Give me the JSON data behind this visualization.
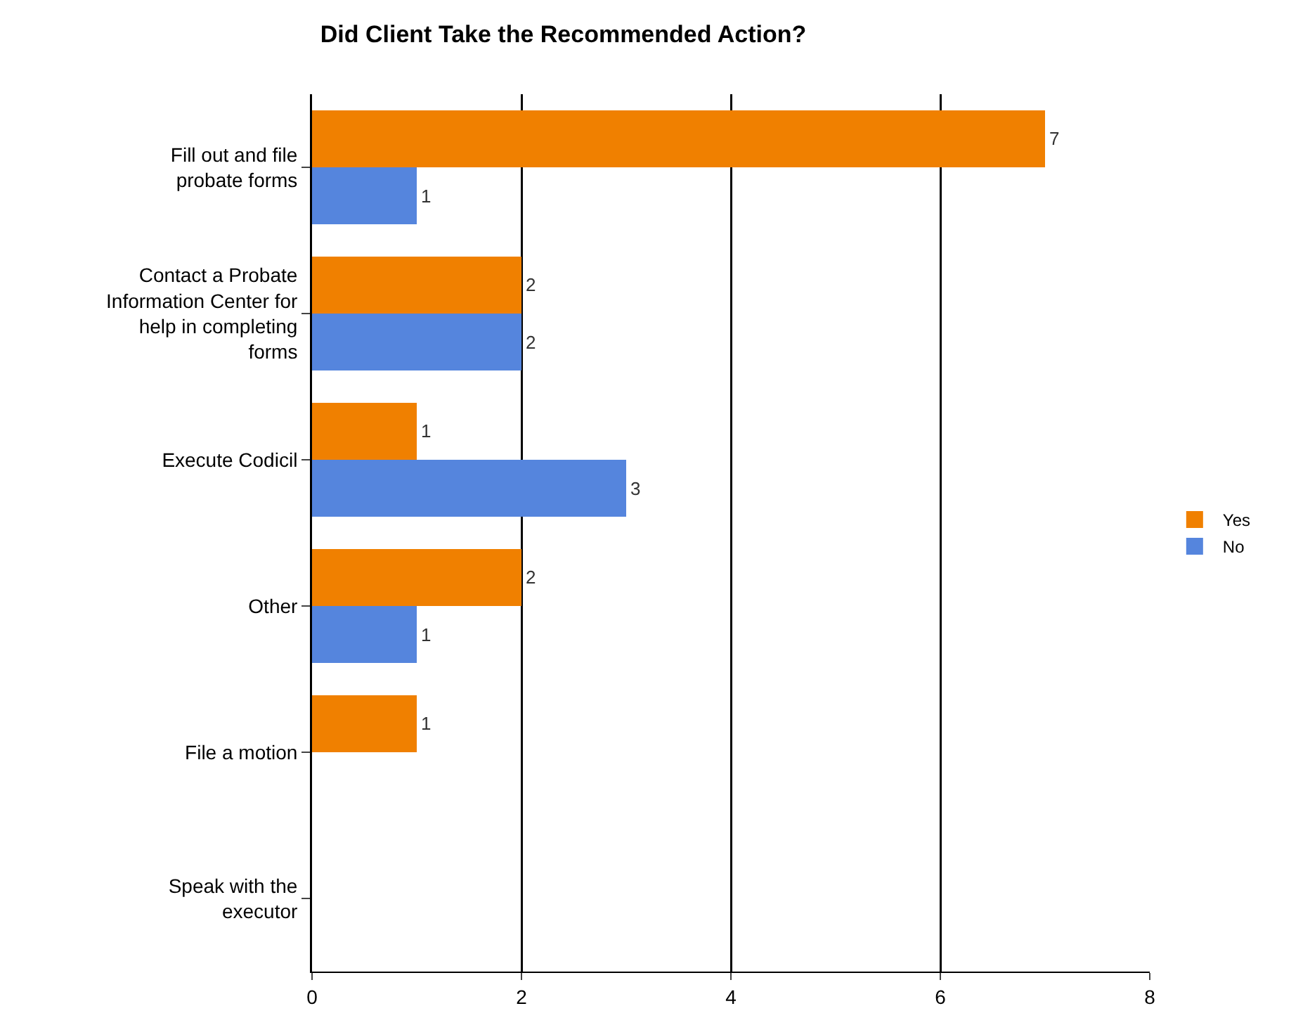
{
  "chart_data": {
    "type": "bar",
    "orientation": "horizontal",
    "title": "Did Client Take the Recommended Action?",
    "categories": [
      "Fill out and file probate forms",
      "Contact a Probate Information Center for help in completing forms",
      "Execute Codicil",
      "Other",
      "File a motion",
      "Speak with the executor"
    ],
    "series": [
      {
        "name": "Yes",
        "color": "#f08000",
        "values": [
          7,
          2,
          1,
          2,
          1,
          null
        ]
      },
      {
        "name": "No",
        "color": "#5585dd",
        "values": [
          1,
          2,
          3,
          1,
          null,
          null
        ]
      }
    ],
    "xlim": [
      0,
      8
    ],
    "xticks": [
      0,
      2,
      4,
      6,
      8
    ],
    "grid": "x",
    "legend": "right",
    "data_labels": true
  }
}
